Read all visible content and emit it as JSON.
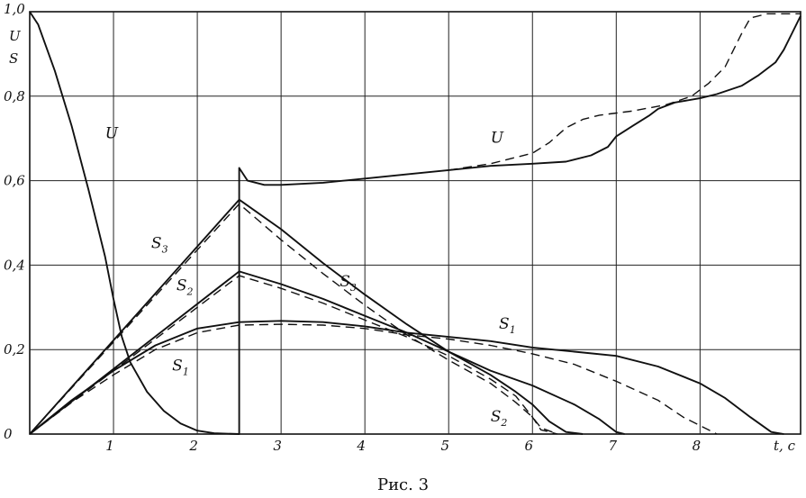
{
  "chart_data": {
    "type": "line",
    "xlabel": "t, c",
    "ylabel": [
      "U",
      "S"
    ],
    "xlim": [
      0,
      9.2
    ],
    "ylim": [
      0,
      1.0
    ],
    "grid": true,
    "x_ticks": [
      "1",
      "2",
      "3",
      "4",
      "5",
      "6",
      "7",
      "8"
    ],
    "x_tick_values": [
      1,
      2,
      3,
      4,
      5,
      6,
      7,
      8
    ],
    "y_ticks": [
      "0",
      "0,2",
      "0,4",
      "0,6",
      "0,8",
      "1,0"
    ],
    "y_tick_values": [
      0,
      0.2,
      0.4,
      0.6,
      0.8,
      1.0
    ],
    "series": [
      {
        "name": "U",
        "style": "solid",
        "points": [
          [
            0,
            1.0
          ],
          [
            0.1,
            0.97
          ],
          [
            0.3,
            0.86
          ],
          [
            0.5,
            0.73
          ],
          [
            0.7,
            0.58
          ],
          [
            0.9,
            0.42
          ],
          [
            1.0,
            0.32
          ],
          [
            1.1,
            0.23
          ],
          [
            1.2,
            0.17
          ],
          [
            1.4,
            0.1
          ],
          [
            1.6,
            0.055
          ],
          [
            1.8,
            0.025
          ],
          [
            2.0,
            0.008
          ],
          [
            2.2,
            0.002
          ],
          [
            2.5,
            0.0
          ],
          [
            2.5,
            0.63
          ],
          [
            2.6,
            0.6
          ],
          [
            2.8,
            0.59
          ],
          [
            3.0,
            0.59
          ],
          [
            3.5,
            0.595
          ],
          [
            4.0,
            0.605
          ],
          [
            4.5,
            0.615
          ],
          [
            5.0,
            0.625
          ],
          [
            5.5,
            0.635
          ],
          [
            6.0,
            0.64
          ],
          [
            6.4,
            0.645
          ],
          [
            6.7,
            0.66
          ],
          [
            6.9,
            0.68
          ],
          [
            7.0,
            0.705
          ],
          [
            7.2,
            0.73
          ],
          [
            7.4,
            0.755
          ],
          [
            7.5,
            0.77
          ],
          [
            7.7,
            0.785
          ],
          [
            8.0,
            0.795
          ],
          [
            8.2,
            0.805
          ],
          [
            8.5,
            0.825
          ],
          [
            8.7,
            0.85
          ],
          [
            8.9,
            0.88
          ],
          [
            9.0,
            0.91
          ],
          [
            9.1,
            0.95
          ],
          [
            9.2,
            0.99
          ]
        ]
      },
      {
        "name": "U",
        "style": "dashed",
        "points": [
          [
            5.0,
            0.625
          ],
          [
            5.5,
            0.64
          ],
          [
            6.0,
            0.665
          ],
          [
            6.2,
            0.69
          ],
          [
            6.4,
            0.725
          ],
          [
            6.6,
            0.745
          ],
          [
            6.8,
            0.755
          ],
          [
            7.2,
            0.765
          ],
          [
            7.6,
            0.78
          ],
          [
            7.9,
            0.8
          ],
          [
            8.1,
            0.83
          ],
          [
            8.3,
            0.87
          ],
          [
            8.4,
            0.91
          ],
          [
            8.5,
            0.95
          ],
          [
            8.6,
            0.985
          ],
          [
            8.8,
            0.995
          ],
          [
            9.2,
            0.995
          ]
        ]
      },
      {
        "name": "S3",
        "style": "solid",
        "points": [
          [
            0,
            0
          ],
          [
            2.5,
            0.555
          ],
          [
            3.0,
            0.485
          ],
          [
            3.5,
            0.405
          ],
          [
            4.0,
            0.33
          ],
          [
            4.5,
            0.26
          ],
          [
            5.0,
            0.195
          ],
          [
            5.5,
            0.14
          ],
          [
            5.8,
            0.1
          ],
          [
            6.0,
            0.07
          ],
          [
            6.2,
            0.03
          ],
          [
            6.4,
            0.005
          ],
          [
            6.6,
            0.0
          ]
        ]
      },
      {
        "name": "S3",
        "style": "dashed",
        "points": [
          [
            0,
            0
          ],
          [
            2.5,
            0.545
          ],
          [
            3.0,
            0.46
          ],
          [
            3.5,
            0.38
          ],
          [
            4.0,
            0.305
          ],
          [
            4.5,
            0.235
          ],
          [
            5.0,
            0.175
          ],
          [
            5.5,
            0.12
          ],
          [
            5.8,
            0.075
          ],
          [
            6.0,
            0.04
          ],
          [
            6.1,
            0.015
          ],
          [
            6.3,
            0.0
          ]
        ]
      },
      {
        "name": "S2",
        "style": "solid",
        "points": [
          [
            0,
            0
          ],
          [
            2.5,
            0.385
          ],
          [
            3.0,
            0.355
          ],
          [
            3.5,
            0.32
          ],
          [
            4.0,
            0.28
          ],
          [
            4.5,
            0.24
          ],
          [
            5.0,
            0.195
          ],
          [
            5.5,
            0.15
          ],
          [
            6.0,
            0.115
          ],
          [
            6.5,
            0.07
          ],
          [
            6.8,
            0.035
          ],
          [
            7.0,
            0.005
          ],
          [
            7.1,
            0.0
          ]
        ]
      },
      {
        "name": "S2",
        "style": "dashed",
        "points": [
          [
            0,
            0
          ],
          [
            2.5,
            0.375
          ],
          [
            3.0,
            0.345
          ],
          [
            3.5,
            0.31
          ],
          [
            4.0,
            0.27
          ],
          [
            4.5,
            0.23
          ],
          [
            5.0,
            0.185
          ],
          [
            5.5,
            0.13
          ],
          [
            5.8,
            0.09
          ],
          [
            6.0,
            0.04
          ],
          [
            6.1,
            0.01
          ],
          [
            6.3,
            0.0
          ]
        ]
      },
      {
        "name": "S1",
        "style": "solid",
        "points": [
          [
            0,
            0
          ],
          [
            0.5,
            0.08
          ],
          [
            1.0,
            0.15
          ],
          [
            1.5,
            0.21
          ],
          [
            2.0,
            0.25
          ],
          [
            2.5,
            0.265
          ],
          [
            3.0,
            0.268
          ],
          [
            3.5,
            0.265
          ],
          [
            4.0,
            0.255
          ],
          [
            4.5,
            0.24
          ],
          [
            5.0,
            0.23
          ],
          [
            5.5,
            0.22
          ],
          [
            6.0,
            0.205
          ],
          [
            6.5,
            0.195
          ],
          [
            7.0,
            0.185
          ],
          [
            7.5,
            0.16
          ],
          [
            8.0,
            0.12
          ],
          [
            8.3,
            0.085
          ],
          [
            8.6,
            0.04
          ],
          [
            8.85,
            0.005
          ],
          [
            9.0,
            0.0
          ]
        ]
      },
      {
        "name": "S1",
        "style": "dashed",
        "points": [
          [
            0,
            0
          ],
          [
            0.5,
            0.075
          ],
          [
            1.0,
            0.14
          ],
          [
            1.5,
            0.2
          ],
          [
            2.0,
            0.24
          ],
          [
            2.5,
            0.258
          ],
          [
            3.0,
            0.26
          ],
          [
            3.5,
            0.258
          ],
          [
            4.0,
            0.25
          ],
          [
            4.5,
            0.235
          ],
          [
            5.0,
            0.225
          ],
          [
            5.5,
            0.21
          ],
          [
            6.0,
            0.19
          ],
          [
            6.5,
            0.165
          ],
          [
            7.0,
            0.125
          ],
          [
            7.5,
            0.08
          ],
          [
            7.8,
            0.04
          ],
          [
            8.1,
            0.01
          ],
          [
            8.2,
            0.0
          ]
        ]
      }
    ],
    "labels": [
      {
        "text": "U",
        "sub": "",
        "at": [
          0.9,
          0.7
        ]
      },
      {
        "text": "U",
        "sub": "",
        "at": [
          5.5,
          0.69
        ]
      },
      {
        "text": "S",
        "sub": "3",
        "at": [
          1.45,
          0.44
        ]
      },
      {
        "text": "S",
        "sub": "2",
        "at": [
          1.75,
          0.34
        ]
      },
      {
        "text": "S",
        "sub": "3",
        "at": [
          3.7,
          0.35
        ]
      },
      {
        "text": "S",
        "sub": "1",
        "at": [
          1.7,
          0.15
        ]
      },
      {
        "text": "S",
        "sub": "1",
        "at": [
          5.6,
          0.25
        ]
      },
      {
        "text": "S",
        "sub": "2",
        "at": [
          5.5,
          0.03
        ]
      }
    ]
  },
  "caption": "Рис.  3"
}
